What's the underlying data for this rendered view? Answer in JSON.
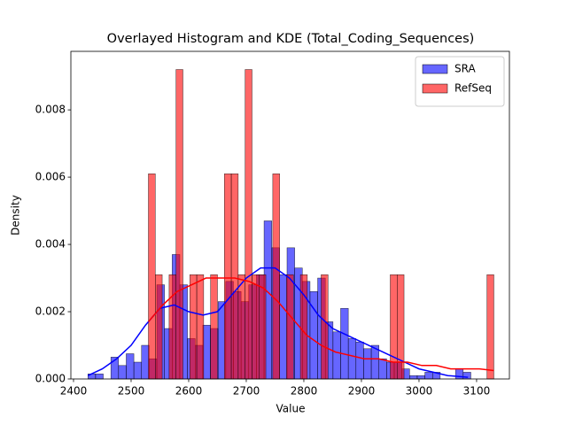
{
  "chart_data": {
    "type": "histogram",
    "title": "Overlayed Histogram and KDE (Total_Coding_Sequences)",
    "x_label": "Value",
    "y_label": "Density",
    "xlim": [
      2395.4,
      3157
    ],
    "ylim": [
      0,
      0.00974
    ],
    "xticks": [
      2400,
      2500,
      2600,
      2700,
      2800,
      2900,
      3000,
      3100
    ],
    "yticks": [
      {
        "value": 0,
        "label": "0.000"
      },
      {
        "value": 0.002,
        "label": "0.002"
      },
      {
        "value": 0.004,
        "label": "0.004"
      },
      {
        "value": 0.006,
        "label": "0.006"
      },
      {
        "value": 0.008,
        "label": "0.008"
      }
    ],
    "legend": "upper right",
    "series": [
      {
        "name": "SRA",
        "color": "#0000ff",
        "bins": [
          2425,
          2438.3,
          2451.6,
          2464.9,
          2478.2,
          2491.5,
          2504.8,
          2518.1,
          2531.4,
          2544.7,
          2558,
          2571.3,
          2584.6,
          2597.9,
          2611.2,
          2624.5,
          2637.8,
          2651.1,
          2664.4,
          2677.7,
          2691,
          2704.3,
          2717.6,
          2730.9,
          2744.2,
          2757.5,
          2770.8,
          2784.1,
          2797.4,
          2810.7,
          2824,
          2837.3,
          2850.6,
          2863.9,
          2877.2,
          2890.5,
          2903.8,
          2917.1,
          2930.4,
          2943.7,
          2957,
          2970.3,
          2983.6,
          2996.9,
          3010.2,
          3023.5,
          3036.8,
          3050.1,
          3063.4,
          3076.7,
          3090
        ],
        "values": [
          0.00015,
          0.00015,
          0,
          0.00065,
          0.0004,
          0.00075,
          0.0005,
          0.001,
          0.0006,
          0.0028,
          0.0015,
          0.0037,
          0.0028,
          0.0012,
          0.001,
          0.0016,
          0.0015,
          0.0023,
          0.0029,
          0.0026,
          0.0023,
          0.0028,
          0.0031,
          0.0047,
          0.0039,
          0.0031,
          0.0039,
          0.0033,
          0.0029,
          0.0026,
          0.003,
          0.0017,
          0.0014,
          0.0021,
          0.0012,
          0.0011,
          0.0009,
          0.001,
          0.0006,
          0.0005,
          0.0005,
          0.0003,
          0.0001,
          0.0001,
          0.0002,
          0.0002,
          0,
          0,
          0.0003,
          0.0002
        ],
        "kde_x": [
          2425,
          2450,
          2475,
          2500,
          2525,
          2550,
          2575,
          2600,
          2625,
          2650,
          2675,
          2700,
          2725,
          2750,
          2775,
          2800,
          2825,
          2850,
          2875,
          2900,
          2925,
          2950,
          2975,
          3000,
          3025,
          3050,
          3085
        ],
        "kde_y": [
          0.0001,
          0.0003,
          0.0006,
          0.001,
          0.0016,
          0.0021,
          0.0022,
          0.002,
          0.0019,
          0.002,
          0.0025,
          0.003,
          0.0033,
          0.0033,
          0.003,
          0.0025,
          0.0019,
          0.0015,
          0.0013,
          0.0011,
          0.0009,
          0.0007,
          0.0005,
          0.0003,
          0.0002,
          0.0001,
          5e-05
        ]
      },
      {
        "name": "RefSeq",
        "color": "#ff0000",
        "bins": [
          2530,
          2542,
          2554,
          2566,
          2578,
          2590,
          2602,
          2614,
          2626,
          2638,
          2650,
          2662,
          2674,
          2686,
          2698,
          2710,
          2722,
          2734,
          2746,
          2758,
          2770,
          2782,
          2794,
          2806,
          2818,
          2830,
          2842,
          2854,
          2866,
          2878,
          2890,
          2902,
          2914,
          2926,
          2938,
          2950,
          2962,
          2974,
          2986,
          2998,
          3010,
          3022,
          3034,
          3046,
          3058,
          3070,
          3082,
          3094,
          3106,
          3118,
          3130
        ],
        "values": [
          0.0061,
          0.0031,
          0,
          0.0031,
          0.0092,
          0,
          0.0031,
          0.0031,
          0,
          0.0031,
          0,
          0.0061,
          0.0061,
          0.0031,
          0.0092,
          0.0031,
          0.0031,
          0,
          0.0061,
          0,
          0.0031,
          0,
          0.0031,
          0,
          0,
          0.0031,
          0,
          0,
          0,
          0,
          0,
          0,
          0,
          0,
          0,
          0.0031,
          0.0031,
          0,
          0,
          0,
          0,
          0,
          0,
          0,
          0,
          0,
          0,
          0,
          0,
          0.0031
        ],
        "kde_x": [
          2530,
          2555,
          2580,
          2605,
          2630,
          2655,
          2680,
          2705,
          2730,
          2755,
          2780,
          2805,
          2830,
          2855,
          2880,
          2905,
          2930,
          2955,
          2980,
          3005,
          3030,
          3055,
          3080,
          3105,
          3130
        ],
        "kde_y": [
          0.0017,
          0.0022,
          0.0026,
          0.0028,
          0.003,
          0.003,
          0.003,
          0.0029,
          0.0027,
          0.0023,
          0.0018,
          0.0013,
          0.001,
          0.0008,
          0.0007,
          0.0006,
          0.0006,
          0.0005,
          0.0005,
          0.0004,
          0.0004,
          0.0003,
          0.0003,
          0.0003,
          0.00025
        ]
      }
    ]
  }
}
